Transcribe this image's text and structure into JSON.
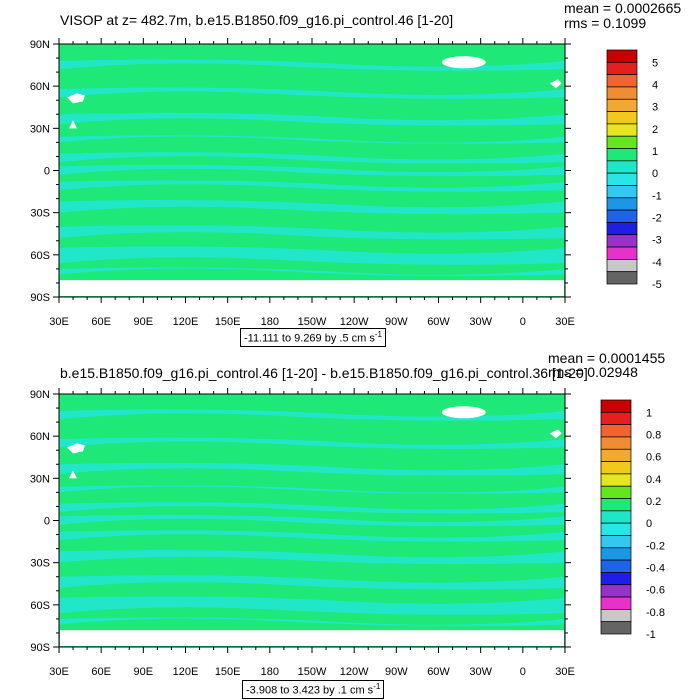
{
  "colors": {
    "land": "#ffffff",
    "ocean_base": "#1ee878",
    "ocean_alt": "#22e6c8",
    "colorbar": [
      "#646464",
      "#c8c8c8",
      "#e632c8",
      "#9632c8",
      "#1e1ee6",
      "#1e64e6",
      "#1e96e6",
      "#32c8f0",
      "#28e6e6",
      "#1ee6c8",
      "#1ee878",
      "#64e61e",
      "#e6e61e",
      "#f0c81e",
      "#f0aa32",
      "#f08c32",
      "#f06432",
      "#e61e1e",
      "#c80000"
    ]
  },
  "panels": [
    {
      "title": "VISOP at z= 482.7m, b.e15.B1850.f09_g16.pi_control.46 [1-20]",
      "mean": "mean = 0.0002665",
      "rms": "rms = 0.1099",
      "range": "-11.111 to 9.269 by .5 cm s",
      "range_sup": "-1",
      "colorbar_labels": [
        "5",
        "4",
        "3",
        "2",
        "1",
        "0",
        "-1",
        "-2",
        "-3",
        "-4",
        "-5"
      ]
    },
    {
      "title": "b.e15.B1850.f09_g16.pi_control.46 [1-20] - b.e15.B1850.f09_g16.pi_control.36 [1-20]",
      "mean": "mean = 0.0001455",
      "rms": "rms = 0.02948",
      "range": "-3.908 to 3.423 by .1 cm s",
      "range_sup": "-1",
      "colorbar_labels": [
        "1",
        "0.8",
        "0.6",
        "0.4",
        "0.2",
        "0",
        "-0.2",
        "-0.4",
        "-0.6",
        "-0.8",
        "-1"
      ]
    }
  ],
  "axes": {
    "lat_labels": [
      "90N",
      "60N",
      "30N",
      "0",
      "30S",
      "60S",
      "90S"
    ],
    "lon_labels": [
      "30E",
      "60E",
      "90E",
      "120E",
      "150E",
      "180",
      "150W",
      "120W",
      "90W",
      "60W",
      "30W",
      "0",
      "30E"
    ]
  },
  "chart_data": [
    {
      "type": "heatmap",
      "title": "VISOP at z= 482.7m, b.e15.B1850.f09_g16.pi_control.46 [1-20]",
      "xlabel": "",
      "ylabel": "",
      "x_ticks": [
        "30E",
        "60E",
        "90E",
        "120E",
        "150E",
        "180",
        "150W",
        "120W",
        "90W",
        "60W",
        "30W",
        "0",
        "30E"
      ],
      "y_ticks": [
        "90N",
        "60N",
        "30N",
        "0",
        "30S",
        "60S",
        "90S"
      ],
      "colorbar_levels": [
        -5,
        -4,
        -3,
        -2,
        -1,
        0,
        1,
        2,
        3,
        4,
        5
      ],
      "mean": 0.0002665,
      "rms": 0.1099,
      "range": [
        -11.111,
        9.269
      ],
      "interval": 0.5,
      "units": "cm s-1"
    },
    {
      "type": "heatmap",
      "title": "b.e15.B1850.f09_g16.pi_control.46 [1-20] - b.e15.B1850.f09_g16.pi_control.36 [1-20]",
      "xlabel": "",
      "ylabel": "",
      "x_ticks": [
        "30E",
        "60E",
        "90E",
        "120E",
        "150E",
        "180",
        "150W",
        "120W",
        "90W",
        "60W",
        "30W",
        "0",
        "30E"
      ],
      "y_ticks": [
        "90N",
        "60N",
        "30N",
        "0",
        "30S",
        "60S",
        "90S"
      ],
      "colorbar_levels": [
        -1,
        -0.8,
        -0.6,
        -0.4,
        -0.2,
        0,
        0.2,
        0.4,
        0.6,
        0.8,
        1
      ],
      "mean": 0.0001455,
      "rms": 0.02948,
      "range": [
        -3.908,
        3.423
      ],
      "interval": 0.1,
      "units": "cm s-1"
    }
  ]
}
